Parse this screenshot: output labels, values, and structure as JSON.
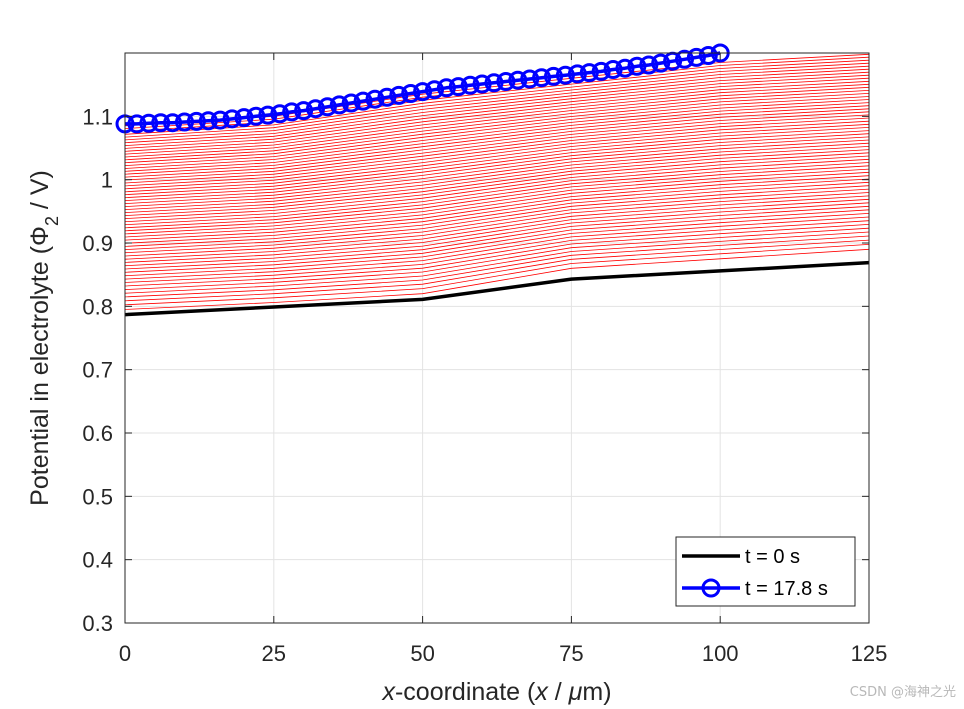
{
  "chart_data": {
    "type": "line",
    "xlabel_parts": {
      "var": "x",
      "middle": "-coordinate (",
      "var2": "x",
      "slash": " / ",
      "mu": "μ",
      "end": "m)"
    },
    "ylabel_parts": {
      "before": "Potential in electrolyte (",
      "phi": "Φ",
      "sub": "2",
      "after": " / V)"
    },
    "xlim": [
      0,
      125
    ],
    "ylim": [
      0.3,
      1.2
    ],
    "xticks": [
      0,
      25,
      50,
      75,
      100,
      125
    ],
    "yticks": [
      0.3,
      0.4,
      0.5,
      0.6,
      0.7,
      0.8,
      0.9,
      1.0,
      1.1
    ],
    "ytick_labels": [
      "0.3",
      "0.4",
      "0.5",
      "0.6",
      "0.7",
      "0.8",
      "0.9",
      "1",
      "1.1"
    ],
    "grid": true,
    "legend_position": "bottom-right",
    "series": [
      {
        "name": "t = 0 s",
        "color": "#000000",
        "marker": "none",
        "x": [
          0,
          25,
          50,
          75,
          100,
          125
        ],
        "y": [
          0.787,
          0.799,
          0.811,
          0.843,
          0.856,
          0.869
        ]
      },
      {
        "name": "t = 17.8 s",
        "color": "#0000ff",
        "marker": "circle",
        "x": [
          0,
          2,
          4,
          6,
          8,
          10,
          12,
          14,
          16,
          18,
          20,
          22,
          24,
          26,
          28,
          30,
          32,
          34,
          36,
          38,
          40,
          42,
          44,
          46,
          48,
          50,
          52,
          54,
          56,
          58,
          60,
          62,
          64,
          66,
          68,
          70,
          72,
          74,
          76,
          78,
          80,
          82,
          84,
          86,
          88,
          90,
          92,
          94,
          96,
          98,
          100
        ],
        "y": [
          1.088,
          1.088,
          1.089,
          1.09,
          1.09,
          1.091,
          1.092,
          1.093,
          1.094,
          1.096,
          1.098,
          1.1,
          1.102,
          1.104,
          1.107,
          1.109,
          1.112,
          1.115,
          1.118,
          1.121,
          1.124,
          1.127,
          1.13,
          1.133,
          1.136,
          1.139,
          1.142,
          1.145,
          1.147,
          1.149,
          1.151,
          1.153,
          1.155,
          1.157,
          1.159,
          1.161,
          1.163,
          1.165,
          1.167,
          1.169,
          1.171,
          1.174,
          1.176,
          1.179,
          1.181,
          1.184,
          1.187,
          1.19,
          1.193,
          1.196,
          1.2
        ]
      }
    ],
    "intermediate_curves": {
      "count": 60,
      "color": "#ff0000",
      "x": [
        0,
        25,
        50,
        75,
        100,
        125
      ],
      "first_y": [
        0.795,
        0.806,
        0.82,
        0.86,
        0.875,
        0.89
      ],
      "last_y": [
        1.085,
        1.1,
        1.135,
        1.16,
        1.185,
        1.198
      ]
    }
  },
  "watermark": "CSDN @海神之光"
}
